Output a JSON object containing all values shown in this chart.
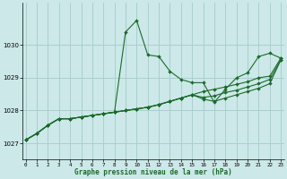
{
  "title": "Graphe pression niveau de la mer (hPa)",
  "bg_color": "#cce8e8",
  "grid_color": "#aacfcf",
  "line_color": "#1a6b2a",
  "x_ticks": [
    0,
    1,
    2,
    3,
    4,
    5,
    6,
    7,
    8,
    9,
    10,
    11,
    12,
    13,
    14,
    15,
    16,
    17,
    18,
    19,
    20,
    21,
    22,
    23
  ],
  "y_ticks": [
    1027,
    1028,
    1029,
    1030
  ],
  "ylim": [
    1026.5,
    1031.3
  ],
  "xlim": [
    -0.3,
    23.3
  ],
  "series": [
    {
      "x": [
        0,
        1,
        2,
        3,
        4,
        5,
        6,
        7,
        8,
        9,
        10,
        11,
        12,
        13,
        14,
        15,
        16,
        17,
        18,
        19,
        20,
        21,
        22,
        23
      ],
      "y": [
        1027.1,
        1027.3,
        1027.55,
        1027.75,
        1027.75,
        1027.8,
        1027.85,
        1027.9,
        1027.95,
        1030.4,
        1030.75,
        1029.7,
        1029.65,
        1029.2,
        1028.95,
        1028.85,
        1028.85,
        1028.25,
        1028.65,
        1029.0,
        1029.15,
        1029.65,
        1029.75,
        1029.6
      ]
    },
    {
      "x": [
        0,
        1,
        2,
        3,
        4,
        5,
        6,
        7,
        8,
        9,
        10,
        11,
        12,
        13,
        14,
        15,
        16,
        17,
        18,
        19,
        20,
        21,
        22,
        23
      ],
      "y": [
        1027.1,
        1027.3,
        1027.55,
        1027.75,
        1027.75,
        1027.8,
        1027.85,
        1027.9,
        1027.95,
        1028.0,
        1028.05,
        1028.1,
        1028.18,
        1028.28,
        1028.38,
        1028.48,
        1028.58,
        1028.65,
        1028.72,
        1028.8,
        1028.88,
        1029.0,
        1029.05,
        1029.6
      ]
    },
    {
      "x": [
        0,
        1,
        2,
        3,
        4,
        5,
        6,
        7,
        8,
        9,
        10,
        11,
        12,
        13,
        14,
        15,
        16,
        17,
        18,
        19,
        20,
        21,
        22,
        23
      ],
      "y": [
        1027.1,
        1027.3,
        1027.55,
        1027.75,
        1027.75,
        1027.8,
        1027.85,
        1027.9,
        1027.95,
        1028.0,
        1028.05,
        1028.1,
        1028.18,
        1028.28,
        1028.38,
        1028.48,
        1028.4,
        1028.45,
        1028.55,
        1028.62,
        1028.72,
        1028.82,
        1028.95,
        1029.55
      ]
    },
    {
      "x": [
        0,
        1,
        2,
        3,
        4,
        5,
        6,
        7,
        8,
        9,
        10,
        11,
        12,
        13,
        14,
        15,
        16,
        17,
        18,
        19,
        20,
        21,
        22,
        23
      ],
      "y": [
        1027.1,
        1027.3,
        1027.55,
        1027.75,
        1027.75,
        1027.8,
        1027.85,
        1027.9,
        1027.95,
        1028.0,
        1028.05,
        1028.1,
        1028.18,
        1028.28,
        1028.38,
        1028.48,
        1028.35,
        1028.28,
        1028.38,
        1028.48,
        1028.58,
        1028.68,
        1028.82,
        1029.55
      ]
    }
  ]
}
